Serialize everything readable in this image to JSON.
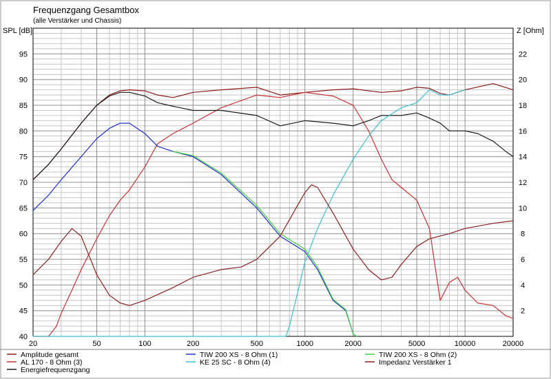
{
  "chart_data": {
    "type": "line",
    "title": "Frequenzgang Gesamtbox",
    "subtitle": "(alle Verstärker und Chassis)",
    "ylabel_left": "SPL [dB]",
    "ylabel_right": "Z [Ohm]",
    "xscale": "log",
    "xlim": [
      20,
      20000
    ],
    "ylim_left": [
      40,
      100
    ],
    "ylim_right": [
      0,
      24
    ],
    "grid": true,
    "x_tick_labels": [
      "20",
      "50",
      "100",
      "200",
      "500",
      "1000",
      "2000",
      "5000",
      "10000",
      "20000"
    ],
    "y_left_ticks": [
      40,
      45,
      50,
      55,
      60,
      65,
      70,
      75,
      80,
      85,
      90,
      95
    ],
    "y_right_ticks": [
      2,
      4,
      6,
      8,
      10,
      12,
      14,
      16,
      18,
      20,
      22
    ],
    "series": [
      {
        "name": "Amplitude gesamt",
        "axis": "left",
        "color": "#8b1a1a",
        "x": [
          20,
          25,
          30,
          40,
          50,
          60,
          70,
          80,
          100,
          120,
          150,
          200,
          300,
          500,
          700,
          1000,
          1500,
          2000,
          3000,
          4000,
          5000,
          6000,
          7000,
          8000,
          10000,
          15000,
          20000
        ],
        "y": [
          70.5,
          73.5,
          76.5,
          81.5,
          85.0,
          87.0,
          87.8,
          88.0,
          87.8,
          87.0,
          86.5,
          87.5,
          88.0,
          88.5,
          87.0,
          87.5,
          88.0,
          88.2,
          87.5,
          87.8,
          88.5,
          88.3,
          87.3,
          87.0,
          88.0,
          89.2,
          88.0
        ]
      },
      {
        "name": "AL 170 - 8 Ohm (3)",
        "axis": "left",
        "color": "#c83232",
        "x": [
          20,
          25,
          28,
          30,
          35,
          40,
          50,
          60,
          70,
          80,
          100,
          120,
          150,
          200,
          300,
          500,
          700,
          1000,
          1500,
          2000,
          2500,
          3000,
          3500,
          4000,
          5000,
          6000,
          7000,
          8000,
          9000,
          10000,
          12000,
          15000,
          18000,
          20000
        ],
        "y": [
          40.0,
          40.0,
          42.0,
          44.5,
          49.0,
          53.0,
          59.0,
          63.5,
          66.5,
          68.5,
          73.0,
          77.5,
          79.5,
          81.5,
          84.5,
          87.0,
          86.5,
          87.5,
          86.8,
          85.0,
          80.0,
          74.5,
          70.5,
          69.0,
          66.5,
          61.0,
          47.0,
          50.5,
          51.5,
          49.0,
          46.5,
          46.0,
          44.0,
          43.5
        ]
      },
      {
        "name": "Energiefrequenzgang",
        "axis": "left",
        "color": "#1a1a1a",
        "x": [
          20,
          25,
          30,
          40,
          50,
          60,
          70,
          80,
          100,
          120,
          150,
          200,
          300,
          500,
          700,
          1000,
          1500,
          2000,
          2500,
          3000,
          4000,
          5000,
          6000,
          7000,
          8000,
          10000,
          12000,
          15000,
          18000,
          20000
        ],
        "y": [
          70.5,
          73.5,
          76.5,
          81.5,
          85.0,
          86.8,
          87.5,
          87.5,
          86.8,
          85.5,
          84.8,
          84.0,
          84.0,
          83.0,
          81.0,
          82.0,
          81.5,
          81.0,
          82.0,
          83.0,
          83.0,
          83.5,
          82.5,
          81.5,
          80.0,
          80.0,
          79.5,
          78.0,
          76.0,
          75.0
        ]
      },
      {
        "name": "TIW 200 XS - 8 Ohm (1)",
        "axis": "left",
        "color": "#2030c8",
        "x": [
          20,
          25,
          30,
          40,
          50,
          60,
          70,
          80,
          100,
          120,
          150,
          200,
          300,
          500,
          700,
          1000,
          1200,
          1500,
          1800,
          2000,
          2100
        ],
        "y": [
          64.5,
          67.5,
          70.5,
          75.0,
          78.5,
          80.5,
          81.5,
          81.5,
          79.5,
          77.0,
          76.0,
          75.0,
          71.5,
          65.0,
          59.5,
          56.5,
          53.0,
          47.0,
          45.0,
          40.5,
          40.0
        ]
      },
      {
        "name": "KE 25 SC - 8 Ohm    (4)",
        "axis": "left",
        "color": "#3cc0d0",
        "x": [
          20,
          600,
          700,
          760,
          800,
          900,
          1000,
          1200,
          1500,
          2000,
          2500,
          3000,
          4000,
          5000,
          6000,
          7000,
          8000,
          10000
        ],
        "y": [
          40.0,
          40.0,
          40.0,
          40.0,
          42.0,
          48.5,
          54.5,
          61.0,
          67.5,
          74.5,
          79.0,
          82.0,
          84.5,
          85.5,
          88.0,
          87.0,
          87.0,
          88.0
        ]
      },
      {
        "name": "TIW 200 XS - 8 Ohm (2)",
        "axis": "left",
        "color": "#40d040",
        "x": [
          150,
          200,
          300,
          500,
          700,
          1000,
          1200,
          1500,
          1800,
          2000,
          2100
        ],
        "y": [
          76.0,
          75.2,
          71.8,
          65.5,
          60.0,
          57.0,
          53.5,
          47.2,
          45.2,
          40.5,
          40.0
        ]
      },
      {
        "name": "Impedanz Verstärker 1",
        "axis": "right",
        "color": "#8b2020",
        "x": [
          20,
          25,
          30,
          35,
          40,
          50,
          60,
          70,
          80,
          100,
          150,
          200,
          300,
          400,
          500,
          700,
          900,
          1000,
          1100,
          1200,
          1500,
          2000,
          2500,
          3000,
          3500,
          4000,
          5000,
          6000,
          8000,
          10000,
          15000,
          20000
        ],
        "y": [
          4.8,
          6.0,
          7.4,
          8.4,
          7.8,
          4.8,
          3.2,
          2.6,
          2.4,
          2.8,
          3.8,
          4.6,
          5.2,
          5.4,
          6.0,
          7.8,
          10.2,
          11.2,
          11.8,
          11.6,
          9.6,
          6.8,
          5.2,
          4.4,
          4.6,
          5.6,
          7.0,
          7.6,
          8.0,
          8.4,
          8.8,
          9.0
        ]
      }
    ],
    "legend": {
      "placement": "bottom",
      "columns": [
        [
          "Amplitude gesamt",
          "AL 170 - 8 Ohm (3)",
          "Energiefrequenzgang"
        ],
        [
          "TIW 200 XS - 8 Ohm (1)",
          "KE 25 SC - 8 Ohm    (4)"
        ],
        [
          "TIW 200 XS - 8 Ohm (2)",
          "Impedanz Verstärker 1"
        ]
      ]
    }
  }
}
